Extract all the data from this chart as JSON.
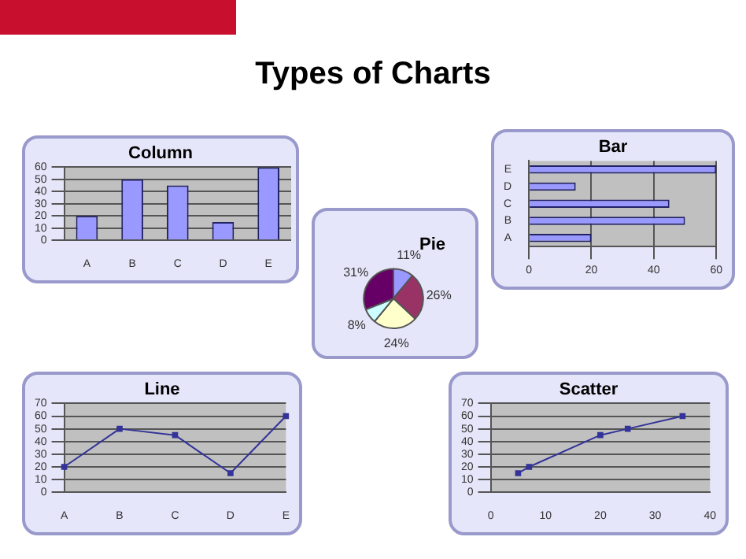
{
  "chart_data": [
    {
      "type": "other",
      "title": "Types of Charts"
    },
    {
      "type": "bar",
      "title": "Column",
      "categories": [
        "A",
        "B",
        "C",
        "D",
        "E"
      ],
      "values": [
        20,
        50,
        45,
        15,
        60
      ],
      "color": "#9999ff",
      "ylim": [
        0,
        60
      ],
      "yticks": [
        0,
        10,
        20,
        30,
        40,
        50,
        60
      ],
      "grid": "y"
    },
    {
      "type": "pie",
      "title": "Pie",
      "categories": [
        null,
        null,
        null,
        null,
        null
      ],
      "values": [
        11,
        26,
        24,
        8,
        31
      ],
      "colors": [
        "#9999ff",
        "#993366",
        "#ffffcc",
        "#ccffff",
        "#660066"
      ],
      "value_labels": [
        "11%",
        "26%",
        "24%",
        "8%",
        "31%"
      ]
    },
    {
      "type": "bar",
      "orientation": "horizontal",
      "title": "Bar",
      "categories": [
        "E",
        "D",
        "C",
        "B",
        "A"
      ],
      "values": [
        60,
        15,
        45,
        50,
        20
      ],
      "color": "#9999ff",
      "xlim": [
        0,
        60
      ],
      "xticks": [
        0,
        20,
        40,
        60
      ],
      "grid": "x"
    },
    {
      "type": "line",
      "title": "Line",
      "categories": [
        "A",
        "B",
        "C",
        "D",
        "E"
      ],
      "values": [
        20,
        50,
        45,
        15,
        60
      ],
      "color": "#333399",
      "ylim": [
        0,
        70
      ],
      "yticks": [
        0,
        10,
        20,
        30,
        40,
        50,
        60,
        70
      ],
      "grid": "y",
      "marker": "square"
    },
    {
      "type": "line",
      "title": "Scatter",
      "x": [
        5,
        7,
        20,
        25,
        35
      ],
      "values": [
        15,
        20,
        45,
        50,
        60
      ],
      "color": "#333399",
      "xlim": [
        0,
        40
      ],
      "xticks": [
        0,
        10,
        20,
        30,
        40
      ],
      "ylim": [
        0,
        70
      ],
      "yticks": [
        0,
        10,
        20,
        30,
        40,
        50,
        60,
        70
      ],
      "grid": "y",
      "marker": "square",
      "line_style": "solid"
    }
  ]
}
